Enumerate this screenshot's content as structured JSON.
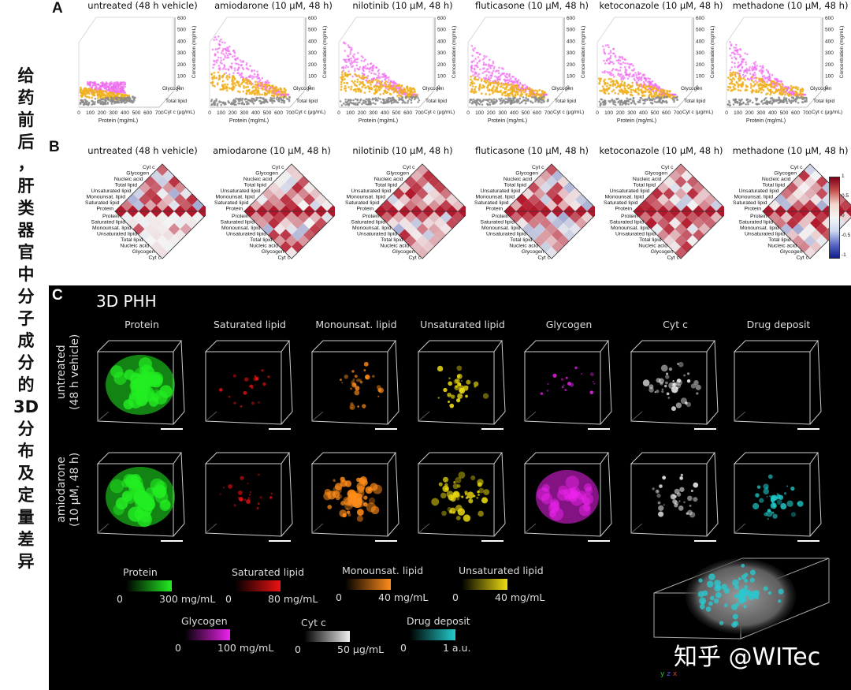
{
  "vertical_title": [
    "给",
    "药",
    "前",
    "后",
    "，",
    "肝",
    "类",
    "器",
    "官",
    "中",
    "分",
    "子",
    "成",
    "分",
    "的",
    "3D",
    "分",
    "布",
    "及",
    "定",
    "量",
    "差",
    "异"
  ],
  "panel_a": {
    "letter": "A",
    "titles": [
      "untreated (48 h vehicle)",
      "amiodarone (10 μM, 48 h)",
      "nilotinib (10 μM, 48 h)",
      "fluticasone (10 μM, 48 h)",
      "ketoconazole (10 μM, 48 h)",
      "methadone (10 μM, 48 h)"
    ],
    "z_ticks": [
      "600",
      "500",
      "400",
      "300",
      "200",
      "100",
      "0"
    ],
    "z_label": "Concentration (mg/mL)",
    "depth_labels": [
      "Glycogen",
      "Total lipid",
      "Cyt c (μg/mL)"
    ],
    "x_ticks": [
      "0",
      "100",
      "200",
      "300",
      "400",
      "500",
      "600",
      "700"
    ],
    "x_label": "Protein (mg/mL)",
    "colors": {
      "glycogen": "#f06cf0",
      "lipid": "#f0b020",
      "cytc": "#8a8a8a"
    }
  },
  "panel_b": {
    "letter": "B",
    "titles": [
      "untreated (48 h vehicle)",
      "amiodarone (10 μM, 48 h)",
      "nilotinib (10 μM, 48 h)",
      "fluticasone (10 μM, 48 h)",
      "ketoconazole (10 μM, 48 h)",
      "methadone (10 μM, 48 h)"
    ],
    "labels_top": [
      "Cyt c",
      "Glycogen",
      "Nucleic acid",
      "Total lipid",
      "Unsaturated lipid",
      "Monounsat. lipid",
      "Saturated lipid",
      "Protein"
    ],
    "labels_bottom": [
      "Protein",
      "Saturated lipid",
      "Monounsat. lipid",
      "Unsaturated lipid",
      "Total lipid",
      "Nucleic acid",
      "Glycogen",
      "Cyt c"
    ],
    "colorbar_ticks": [
      "1",
      "0.5",
      "0",
      "-0.5",
      "-1"
    ],
    "colors": {
      "positive": "#b2182b",
      "negative": "#2c3e9e"
    }
  },
  "panel_c": {
    "letter": "C",
    "heading": "3D PHH",
    "columns": [
      "Protein",
      "Saturated lipid",
      "Monounsat. lipid",
      "Unsaturated lipid",
      "Glycogen",
      "Cyt c",
      "Drug deposit"
    ],
    "rows": [
      {
        "label_line1": "untreated",
        "label_line2": "(48 h vehicle)"
      },
      {
        "label_line1": "amiodarone",
        "label_line2": "(10 μM, 48 h)"
      }
    ],
    "legends": [
      {
        "name": "Protein",
        "min": "0",
        "max": "300 mg/mL",
        "color": "#22ee22"
      },
      {
        "name": "Saturated lipid",
        "min": "0",
        "max": "80 mg/mL",
        "color": "#ee1111"
      },
      {
        "name": "Monounsat. lipid",
        "min": "0",
        "max": "40 mg/mL",
        "color": "#ff8c1a"
      },
      {
        "name": "Unsaturated lipid",
        "min": "0",
        "max": "40 mg/mL",
        "color": "#eedd11"
      },
      {
        "name": "Glycogen",
        "min": "0",
        "max": "100 mg/mL",
        "color": "#ee22ee"
      },
      {
        "name": "Cyt c",
        "min": "0",
        "max": "50 μg/mL",
        "color": "#eeeeee"
      },
      {
        "name": "Drug deposit",
        "min": "0",
        "max": "1 a.u.",
        "color": "#22cccc"
      }
    ],
    "axis_labels": [
      "y",
      "z",
      "x"
    ]
  },
  "watermark": "知乎 @WITec"
}
